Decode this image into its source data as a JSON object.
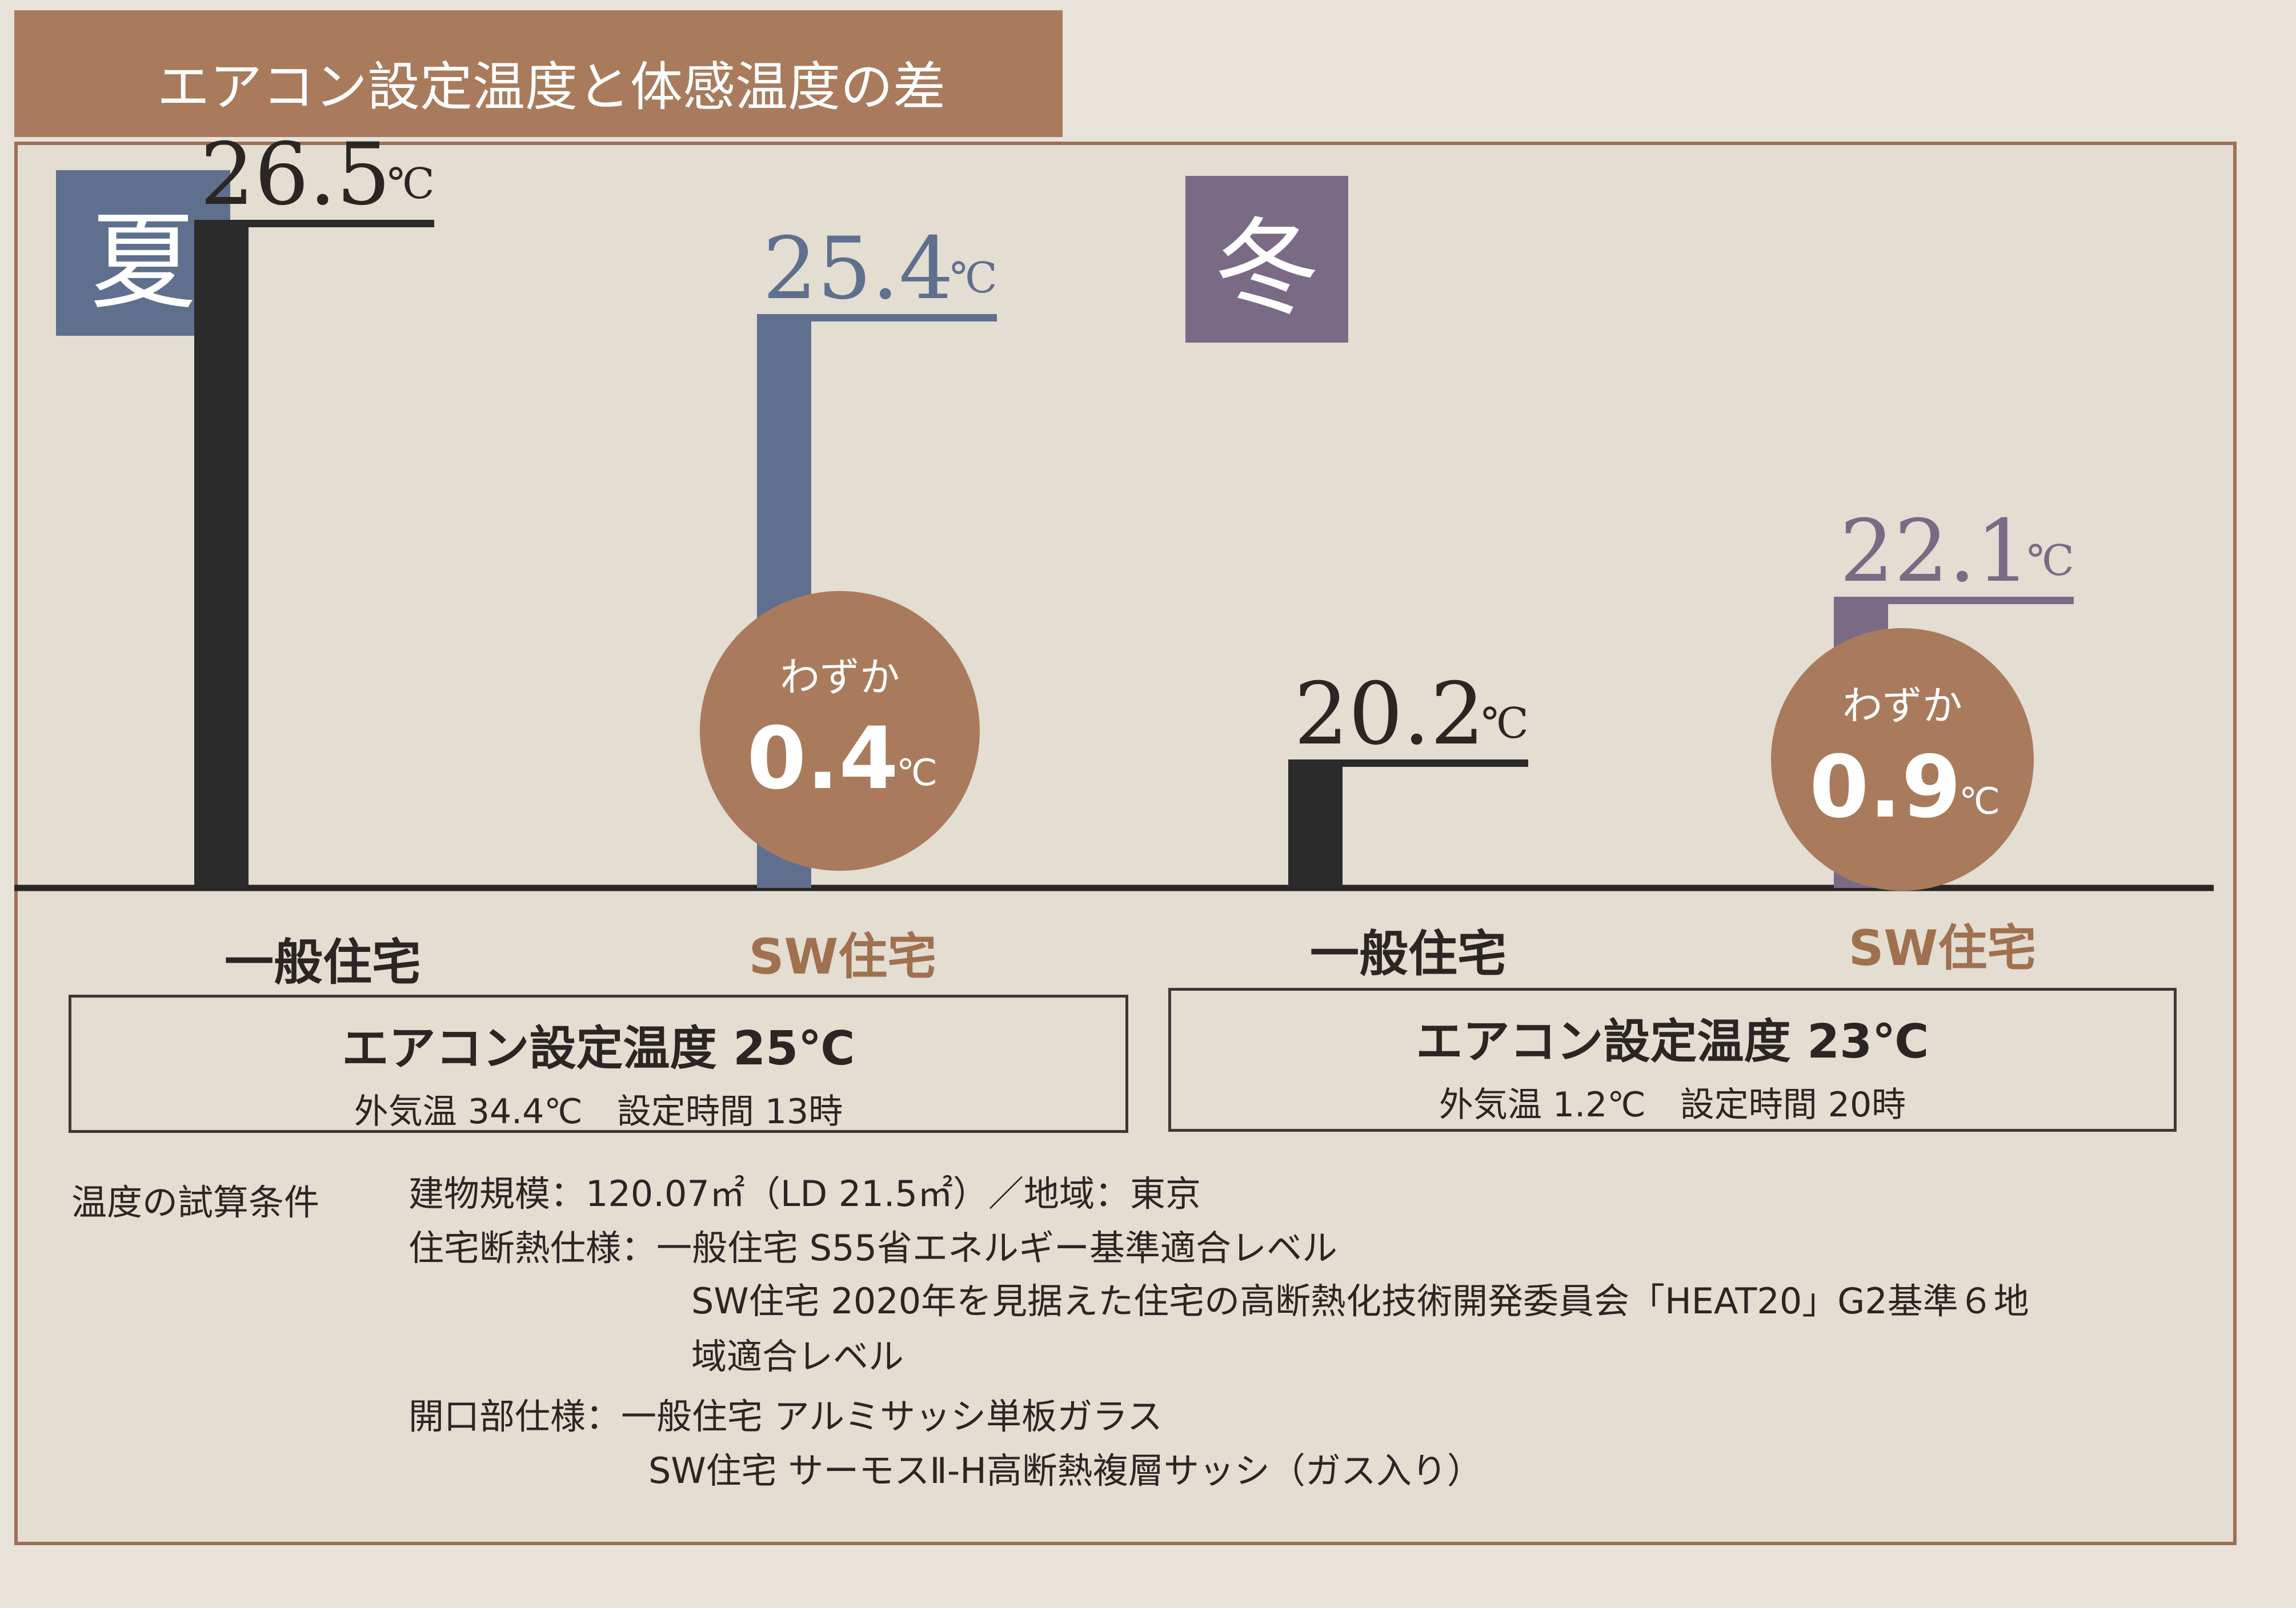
{
  "header": {
    "title": "エアコン設定温度と体感温度の差"
  },
  "colors": {
    "brown": "#a97b5c",
    "summer_accent": "#5f6f8e",
    "winter_accent": "#7b6a86",
    "general_house": "#2b2b2b",
    "sw_house_label": "#a0714f"
  },
  "chart_data": [
    {
      "type": "bar",
      "title": "夏",
      "categories": [
        "一般住宅",
        "SW住宅"
      ],
      "values": [
        26.5,
        25.4
      ],
      "value_labels": [
        "26.5",
        "25.4"
      ],
      "unit": "℃",
      "difference_badge": {
        "line1": "わずか",
        "value": "0.4",
        "unit": "℃"
      },
      "condition": {
        "main": "エアコン設定温度 25℃",
        "sub": "外気温 34.4℃　設定時間 13時"
      }
    },
    {
      "type": "bar",
      "title": "冬",
      "categories": [
        "一般住宅",
        "SW住宅"
      ],
      "values": [
        20.2,
        22.1
      ],
      "value_labels": [
        "20.2",
        "22.1"
      ],
      "unit": "℃",
      "difference_badge": {
        "line1": "わずか",
        "value": "0.9",
        "unit": "℃"
      },
      "condition": {
        "main": "エアコン設定温度 23℃",
        "sub": "外気温 1.2℃　設定時間 20時"
      }
    }
  ],
  "notes": {
    "heading": "温度の試算条件",
    "lines": [
      "建物規模：120.07㎡（LD 21.5㎡）／地域：東京",
      "住宅断熱仕様：一般住宅 S55省エネルギー基準適合レベル",
      "SW住宅 2020年を見据えた住宅の高断熱化技術開発委員会「HEAT20」G2基準６地",
      "域適合レベル",
      "開口部仕様：一般住宅 アルミサッシ単板ガラス",
      "SW住宅 サーモスⅡ-H高断熱複層サッシ（ガス入り）"
    ]
  }
}
